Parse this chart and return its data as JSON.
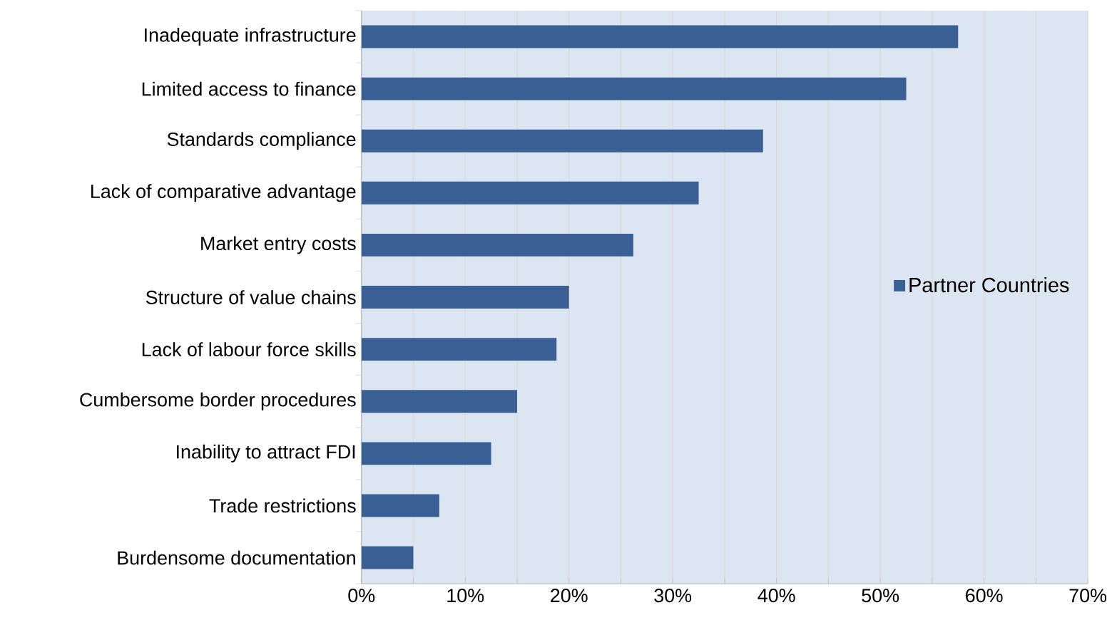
{
  "chart_data": {
    "type": "bar",
    "orientation": "horizontal",
    "categories": [
      "Inadequate infrastructure",
      "Limited access to finance",
      "Standards compliance",
      "Lack of comparative advantage",
      "Market entry costs",
      "Structure of value chains",
      "Lack of labour force skills",
      "Cumbersome border procedures",
      "Inability to attract FDI",
      "Trade restrictions",
      "Burdensome documentation"
    ],
    "series": [
      {
        "name": "Partner Countries",
        "color": "#3a5f95",
        "values": [
          57.5,
          52.5,
          38.7,
          32.5,
          26.2,
          20.0,
          18.8,
          15.0,
          12.5,
          7.5,
          5.0
        ]
      }
    ],
    "xlim": [
      0,
      70
    ],
    "xticks": [
      {
        "value": 0,
        "label": "0%"
      },
      {
        "value": 5,
        "label": null
      },
      {
        "value": 10,
        "label": "10%"
      },
      {
        "value": 15,
        "label": null
      },
      {
        "value": 20,
        "label": "20%"
      },
      {
        "value": 25,
        "label": null
      },
      {
        "value": 30,
        "label": "30%"
      },
      {
        "value": 35,
        "label": null
      },
      {
        "value": 40,
        "label": "40%"
      },
      {
        "value": 45,
        "label": null
      },
      {
        "value": 50,
        "label": "50%"
      },
      {
        "value": 55,
        "label": null
      },
      {
        "value": 60,
        "label": "60%"
      },
      {
        "value": 65,
        "label": null
      },
      {
        "value": 70,
        "label": "70%"
      }
    ],
    "grid": "x",
    "legend": "right"
  }
}
